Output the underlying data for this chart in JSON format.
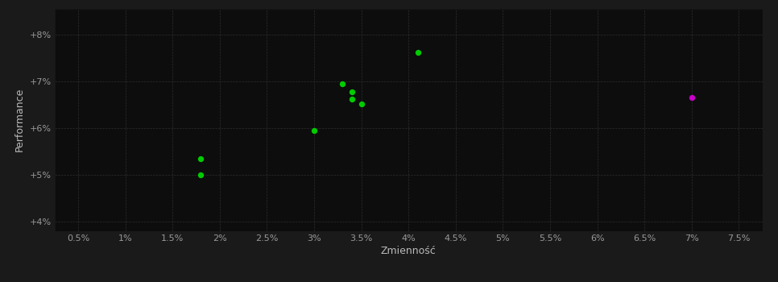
{
  "background_color": "#1a1a1a",
  "plot_bg_color": "#0d0d0d",
  "grid_color": "#2d2d2d",
  "xlabel": "Zmienność",
  "ylabel": "Performance",
  "xlim": [
    0.0025,
    0.0775
  ],
  "ylim": [
    0.038,
    0.0855
  ],
  "xticks": [
    0.005,
    0.01,
    0.015,
    0.02,
    0.025,
    0.03,
    0.035,
    0.04,
    0.045,
    0.05,
    0.055,
    0.06,
    0.065,
    0.07,
    0.075
  ],
  "yticks": [
    0.04,
    0.05,
    0.06,
    0.07,
    0.08
  ],
  "ytick_labels": [
    "+4%",
    "+5%",
    "+6%",
    "+7%",
    "+8%"
  ],
  "green_points": [
    [
      0.018,
      0.0535
    ],
    [
      0.018,
      0.05
    ],
    [
      0.03,
      0.0595
    ],
    [
      0.033,
      0.0695
    ],
    [
      0.034,
      0.0678
    ],
    [
      0.034,
      0.0662
    ],
    [
      0.035,
      0.0652
    ],
    [
      0.041,
      0.0762
    ]
  ],
  "magenta_points": [
    [
      0.07,
      0.0665
    ]
  ],
  "green_color": "#00cc00",
  "magenta_color": "#cc00cc",
  "marker_size": 28,
  "text_color": "#bbbbbb",
  "tick_color": "#999999",
  "tick_fontsize": 8,
  "label_fontsize": 9
}
